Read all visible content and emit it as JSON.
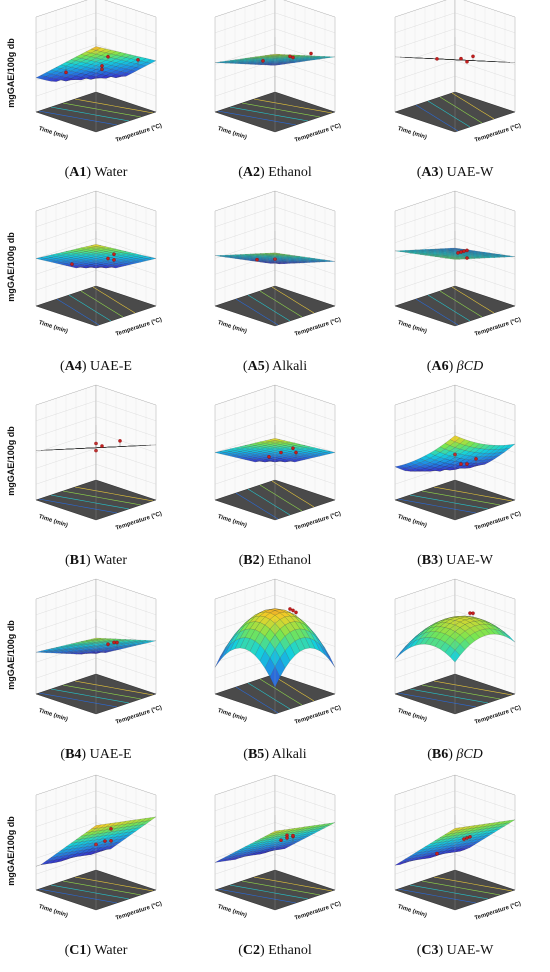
{
  "figure": {
    "zlabel": "mgGAE/100g db",
    "x_axis_label": "Time (min)",
    "y_axis_label": "Temperature (°C)"
  },
  "chart_data": [
    {
      "id": "A1",
      "type": "surface",
      "caption": {
        "letter": "A1",
        "text": "Water",
        "italic": ""
      },
      "tilt": [
        -0.9,
        -0.6
      ],
      "curv": 0,
      "base": 0.45,
      "points": [
        [
          0.2,
          0.9
        ],
        [
          0.5,
          0.6
        ],
        [
          0.85,
          0.95
        ],
        [
          0.1,
          0.3
        ],
        [
          0.6,
          0.1
        ]
      ]
    },
    {
      "id": "A2",
      "type": "surface",
      "caption": {
        "letter": "A2",
        "text": "Ethanol",
        "italic": ""
      },
      "tilt": [
        -0.5,
        -0.4
      ],
      "curv": 0,
      "base": 0.55,
      "points": [
        [
          0.3,
          0.9
        ],
        [
          0.7,
          0.95
        ],
        [
          0.9,
          0.7
        ],
        [
          0.1,
          0.4
        ]
      ]
    },
    {
      "id": "A3",
      "type": "surface",
      "caption": {
        "letter": "A3",
        "text": "UAE-W",
        "italic": ""
      },
      "tilt": [
        -0.3,
        -0.4
      ],
      "curv": 0,
      "base": 0.55,
      "points": [
        [
          0.5,
          0.8
        ],
        [
          0.5,
          0.6
        ],
        [
          0.2,
          0.4
        ],
        [
          0.8,
          0.5
        ]
      ]
    },
    {
      "id": "A4",
      "type": "surface",
      "caption": {
        "letter": "A4",
        "text": "UAE-E",
        "italic": ""
      },
      "tilt": [
        -0.6,
        -0.6
      ],
      "curv": 0,
      "base": 0.5,
      "points": [
        [
          0.6,
          0.9
        ],
        [
          0.5,
          0.7
        ],
        [
          0.2,
          0.5
        ],
        [
          0.9,
          0.5
        ]
      ]
    },
    {
      "id": "A5",
      "type": "surface",
      "caption": {
        "letter": "A5",
        "text": "Alkali",
        "italic": ""
      },
      "tilt": [
        -0.4,
        -0.5
      ],
      "curv": 0,
      "base": 0.5,
      "points": [
        [
          0.3,
          0.3
        ],
        [
          0.7,
          0.4
        ]
      ]
    },
    {
      "id": "A6",
      "type": "surface",
      "caption": {
        "letter": "A6",
        "text": "",
        "italic": "βCD"
      },
      "tilt": [
        -0.2,
        -0.3
      ],
      "curv": 0,
      "base": 0.55,
      "points": [
        [
          0.5,
          0.7
        ],
        [
          0.5,
          0.65
        ],
        [
          0.5,
          0.6
        ],
        [
          0.5,
          0.55
        ],
        [
          0.2,
          0.4
        ]
      ]
    },
    {
      "id": "B1",
      "type": "surface",
      "caption": {
        "letter": "B1",
        "text": "Water",
        "italic": ""
      },
      "tilt": [
        -0.4,
        -0.3
      ],
      "curv": 0,
      "base": 0.55,
      "points": [
        [
          0.5,
          0.9
        ],
        [
          0.8,
          0.8
        ],
        [
          0.5,
          0.6
        ],
        [
          0.3,
          0.3
        ]
      ]
    },
    {
      "id": "B2",
      "type": "surface",
      "caption": {
        "letter": "B2",
        "text": "Ethanol",
        "italic": ""
      },
      "tilt": [
        -0.6,
        -0.6
      ],
      "curv": 0,
      "base": 0.5,
      "points": [
        [
          0.5,
          0.85
        ],
        [
          0.5,
          0.6
        ],
        [
          0.8,
          0.7
        ],
        [
          0.2,
          0.5
        ]
      ]
    },
    {
      "id": "B3",
      "type": "surface",
      "caption": {
        "letter": "B3",
        "text": "UAE-W",
        "italic": ""
      },
      "tilt": [
        -0.9,
        -0.5
      ],
      "curv": 0.2,
      "base": 0.4,
      "points": [
        [
          0.6,
          0.95
        ],
        [
          0.6,
          0.8
        ],
        [
          0.9,
          0.9
        ],
        [
          0.5,
          0.6
        ]
      ]
    },
    {
      "id": "B4",
      "type": "surface",
      "caption": {
        "letter": "B4",
        "text": "UAE-E",
        "italic": ""
      },
      "tilt": [
        -0.6,
        -0.4
      ],
      "curv": 0,
      "base": 0.5,
      "points": [
        [
          0.5,
          0.85
        ],
        [
          0.5,
          0.7
        ],
        [
          0.3,
          0.6
        ]
      ]
    },
    {
      "id": "B5",
      "type": "surface",
      "caption": {
        "letter": "B5",
        "text": "Alkali",
        "italic": ""
      },
      "tilt": [
        0,
        0
      ],
      "curv": -1.2,
      "base": 0.7,
      "points": [
        [
          0.5,
          0.85
        ],
        [
          0.5,
          0.8
        ],
        [
          0.5,
          0.75
        ]
      ]
    },
    {
      "id": "B6",
      "type": "surface",
      "caption": {
        "letter": "B6",
        "text": "",
        "italic": "βCD"
      },
      "tilt": [
        -0.3,
        0
      ],
      "curv": -0.7,
      "base": 0.7,
      "points": [
        [
          0.5,
          0.8
        ],
        [
          0.5,
          0.75
        ]
      ]
    },
    {
      "id": "C1",
      "type": "surface",
      "caption": {
        "letter": "C1",
        "text": "Water",
        "italic": ""
      },
      "tilt": [
        -1.1,
        -0.2
      ],
      "curv": 0,
      "base": 0.5,
      "points": [
        [
          0.7,
          0.95
        ],
        [
          0.6,
          0.75
        ],
        [
          0.6,
          0.6
        ],
        [
          0.1,
          0.35
        ]
      ]
    },
    {
      "id": "C2",
      "type": "surface",
      "caption": {
        "letter": "C2",
        "text": "Ethanol",
        "italic": ""
      },
      "tilt": [
        -0.9,
        -0.2
      ],
      "curv": 0,
      "base": 0.5,
      "points": [
        [
          0.6,
          0.9
        ],
        [
          0.5,
          0.8
        ],
        [
          0.5,
          0.7
        ],
        [
          0.5,
          0.6
        ],
        [
          0.2,
          0.4
        ]
      ]
    },
    {
      "id": "C3",
      "type": "surface",
      "caption": {
        "letter": "C3",
        "text": "UAE-W",
        "italic": ""
      },
      "tilt": [
        -1.0,
        -0.2
      ],
      "curv": 0,
      "base": 0.5,
      "points": [
        [
          0.5,
          0.75
        ],
        [
          0.5,
          0.7
        ],
        [
          0.5,
          0.65
        ],
        [
          0.8,
          0.5
        ]
      ]
    }
  ]
}
